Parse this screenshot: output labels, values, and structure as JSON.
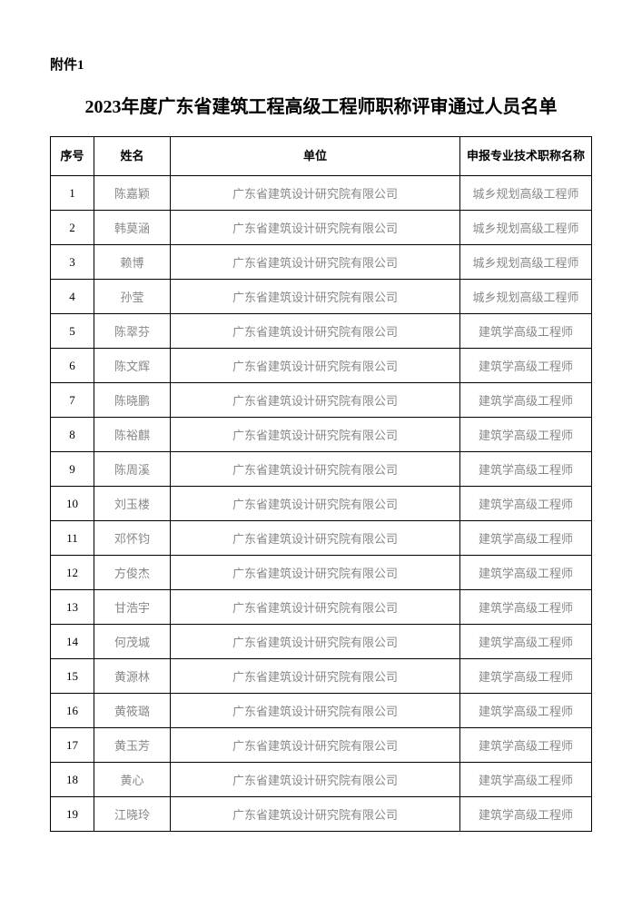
{
  "attachment_label": "附件1",
  "page_title": "2023年度广东省建筑工程高级工程师职称评审通过人员名单",
  "columns": {
    "index": "序号",
    "name": "姓名",
    "unit": "单位",
    "title": "申报专业技术职称名称"
  },
  "rows": [
    {
      "index": "1",
      "name": "陈嘉颖",
      "unit": "广东省建筑设计研究院有限公司",
      "title": "城乡规划高级工程师"
    },
    {
      "index": "2",
      "name": "韩莫涵",
      "unit": "广东省建筑设计研究院有限公司",
      "title": "城乡规划高级工程师"
    },
    {
      "index": "3",
      "name": "赖博",
      "unit": "广东省建筑设计研究院有限公司",
      "title": "城乡规划高级工程师"
    },
    {
      "index": "4",
      "name": "孙莹",
      "unit": "广东省建筑设计研究院有限公司",
      "title": "城乡规划高级工程师"
    },
    {
      "index": "5",
      "name": "陈翠芬",
      "unit": "广东省建筑设计研究院有限公司",
      "title": "建筑学高级工程师"
    },
    {
      "index": "6",
      "name": "陈文辉",
      "unit": "广东省建筑设计研究院有限公司",
      "title": "建筑学高级工程师"
    },
    {
      "index": "7",
      "name": "陈晓鹏",
      "unit": "广东省建筑设计研究院有限公司",
      "title": "建筑学高级工程师"
    },
    {
      "index": "8",
      "name": "陈裕麒",
      "unit": "广东省建筑设计研究院有限公司",
      "title": "建筑学高级工程师"
    },
    {
      "index": "9",
      "name": "陈周溪",
      "unit": "广东省建筑设计研究院有限公司",
      "title": "建筑学高级工程师"
    },
    {
      "index": "10",
      "name": "刘玉楼",
      "unit": "广东省建筑设计研究院有限公司",
      "title": "建筑学高级工程师"
    },
    {
      "index": "11",
      "name": "邓怀钧",
      "unit": "广东省建筑设计研究院有限公司",
      "title": "建筑学高级工程师"
    },
    {
      "index": "12",
      "name": "方俊杰",
      "unit": "广东省建筑设计研究院有限公司",
      "title": "建筑学高级工程师"
    },
    {
      "index": "13",
      "name": "甘浩宇",
      "unit": "广东省建筑设计研究院有限公司",
      "title": "建筑学高级工程师"
    },
    {
      "index": "14",
      "name": "何茂城",
      "unit": "广东省建筑设计研究院有限公司",
      "title": "建筑学高级工程师"
    },
    {
      "index": "15",
      "name": "黄源林",
      "unit": "广东省建筑设计研究院有限公司",
      "title": "建筑学高级工程师"
    },
    {
      "index": "16",
      "name": "黄筱璐",
      "unit": "广东省建筑设计研究院有限公司",
      "title": "建筑学高级工程师"
    },
    {
      "index": "17",
      "name": "黄玉芳",
      "unit": "广东省建筑设计研究院有限公司",
      "title": "建筑学高级工程师"
    },
    {
      "index": "18",
      "name": "黄心",
      "unit": "广东省建筑设计研究院有限公司",
      "title": "建筑学高级工程师"
    },
    {
      "index": "19",
      "name": "江晓玲",
      "unit": "广东省建筑设计研究院有限公司",
      "title": "建筑学高级工程师"
    }
  ]
}
